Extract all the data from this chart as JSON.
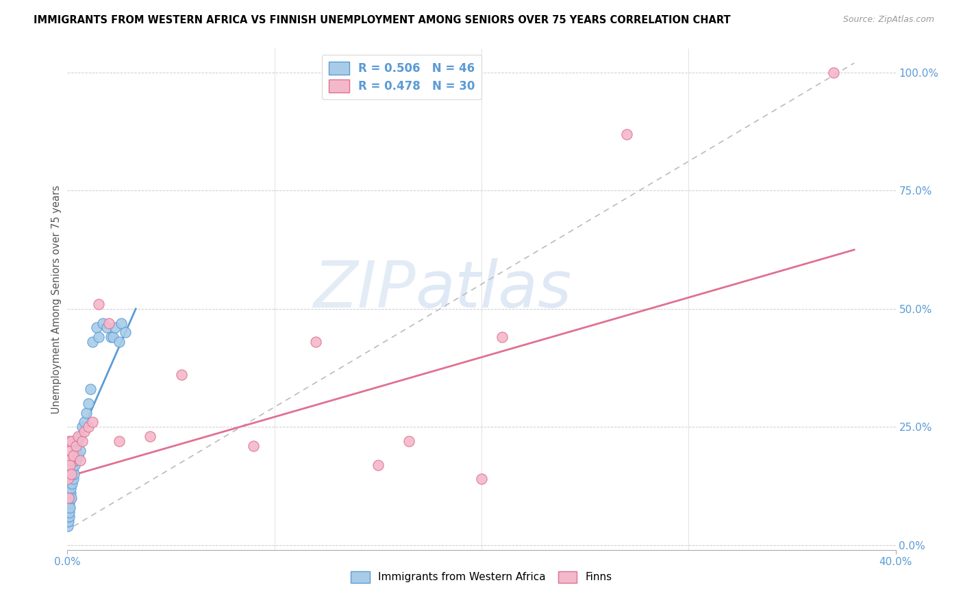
{
  "title": "IMMIGRANTS FROM WESTERN AFRICA VS FINNISH UNEMPLOYMENT AMONG SENIORS OVER 75 YEARS CORRELATION CHART",
  "source": "Source: ZipAtlas.com",
  "ylabel": "Unemployment Among Seniors over 75 years",
  "right_yticks": [
    "0.0%",
    "25.0%",
    "50.0%",
    "75.0%",
    "100.0%"
  ],
  "right_ytick_vals": [
    0.0,
    0.25,
    0.5,
    0.75,
    1.0
  ],
  "legend_blue_label": "R = 0.506   N = 46",
  "legend_pink_label": "R = 0.478   N = 30",
  "legend_bottom_blue": "Immigrants from Western Africa",
  "legend_bottom_pink": "Finns",
  "watermark_zip": "ZIP",
  "watermark_atlas": "atlas",
  "blue_scatter_x": [
    0.0002,
    0.0003,
    0.0004,
    0.0005,
    0.0006,
    0.0007,
    0.0008,
    0.0009,
    0.001,
    0.001,
    0.0012,
    0.0013,
    0.0014,
    0.0015,
    0.0016,
    0.0018,
    0.002,
    0.002,
    0.0022,
    0.0025,
    0.003,
    0.003,
    0.0032,
    0.0035,
    0.004,
    0.004,
    0.005,
    0.005,
    0.006,
    0.006,
    0.007,
    0.008,
    0.009,
    0.01,
    0.011,
    0.012,
    0.014,
    0.015,
    0.017,
    0.019,
    0.021,
    0.022,
    0.023,
    0.025,
    0.026,
    0.028
  ],
  "blue_scatter_y": [
    0.04,
    0.05,
    0.05,
    0.06,
    0.07,
    0.06,
    0.08,
    0.07,
    0.09,
    0.12,
    0.08,
    0.1,
    0.11,
    0.13,
    0.12,
    0.14,
    0.1,
    0.15,
    0.13,
    0.16,
    0.14,
    0.22,
    0.15,
    0.17,
    0.18,
    0.2,
    0.19,
    0.22,
    0.2,
    0.23,
    0.25,
    0.26,
    0.28,
    0.3,
    0.33,
    0.43,
    0.46,
    0.44,
    0.47,
    0.46,
    0.44,
    0.44,
    0.46,
    0.43,
    0.47,
    0.45
  ],
  "pink_scatter_x": [
    0.0002,
    0.0003,
    0.0005,
    0.001,
    0.001,
    0.0013,
    0.0015,
    0.002,
    0.002,
    0.003,
    0.004,
    0.005,
    0.006,
    0.007,
    0.008,
    0.01,
    0.012,
    0.015,
    0.02,
    0.025,
    0.04,
    0.055,
    0.09,
    0.12,
    0.15,
    0.165,
    0.2,
    0.21,
    0.27,
    0.37
  ],
  "pink_scatter_y": [
    0.14,
    0.16,
    0.1,
    0.18,
    0.22,
    0.17,
    0.2,
    0.15,
    0.22,
    0.19,
    0.21,
    0.23,
    0.18,
    0.22,
    0.24,
    0.25,
    0.26,
    0.51,
    0.47,
    0.22,
    0.23,
    0.36,
    0.21,
    0.43,
    0.17,
    0.22,
    0.14,
    0.44,
    0.87,
    1.0
  ],
  "blue_line_x": [
    0.009,
    0.033
  ],
  "blue_line_y": [
    0.26,
    0.5
  ],
  "pink_line_x": [
    0.0,
    0.38
  ],
  "pink_line_y": [
    0.145,
    0.625
  ],
  "dash_line_x": [
    0.003,
    0.38
  ],
  "dash_line_y": [
    0.04,
    1.02
  ],
  "blue_color": "#a8cce8",
  "blue_edge_color": "#5b9bd5",
  "pink_color": "#f4b8cb",
  "pink_edge_color": "#e07090",
  "dash_color": "#bbbbbb",
  "axis_color": "#5b9bd5",
  "title_fontsize": 10.5,
  "scatter_size": 120,
  "xlim": [
    0.0,
    0.4
  ],
  "ylim": [
    -0.01,
    1.05
  ]
}
